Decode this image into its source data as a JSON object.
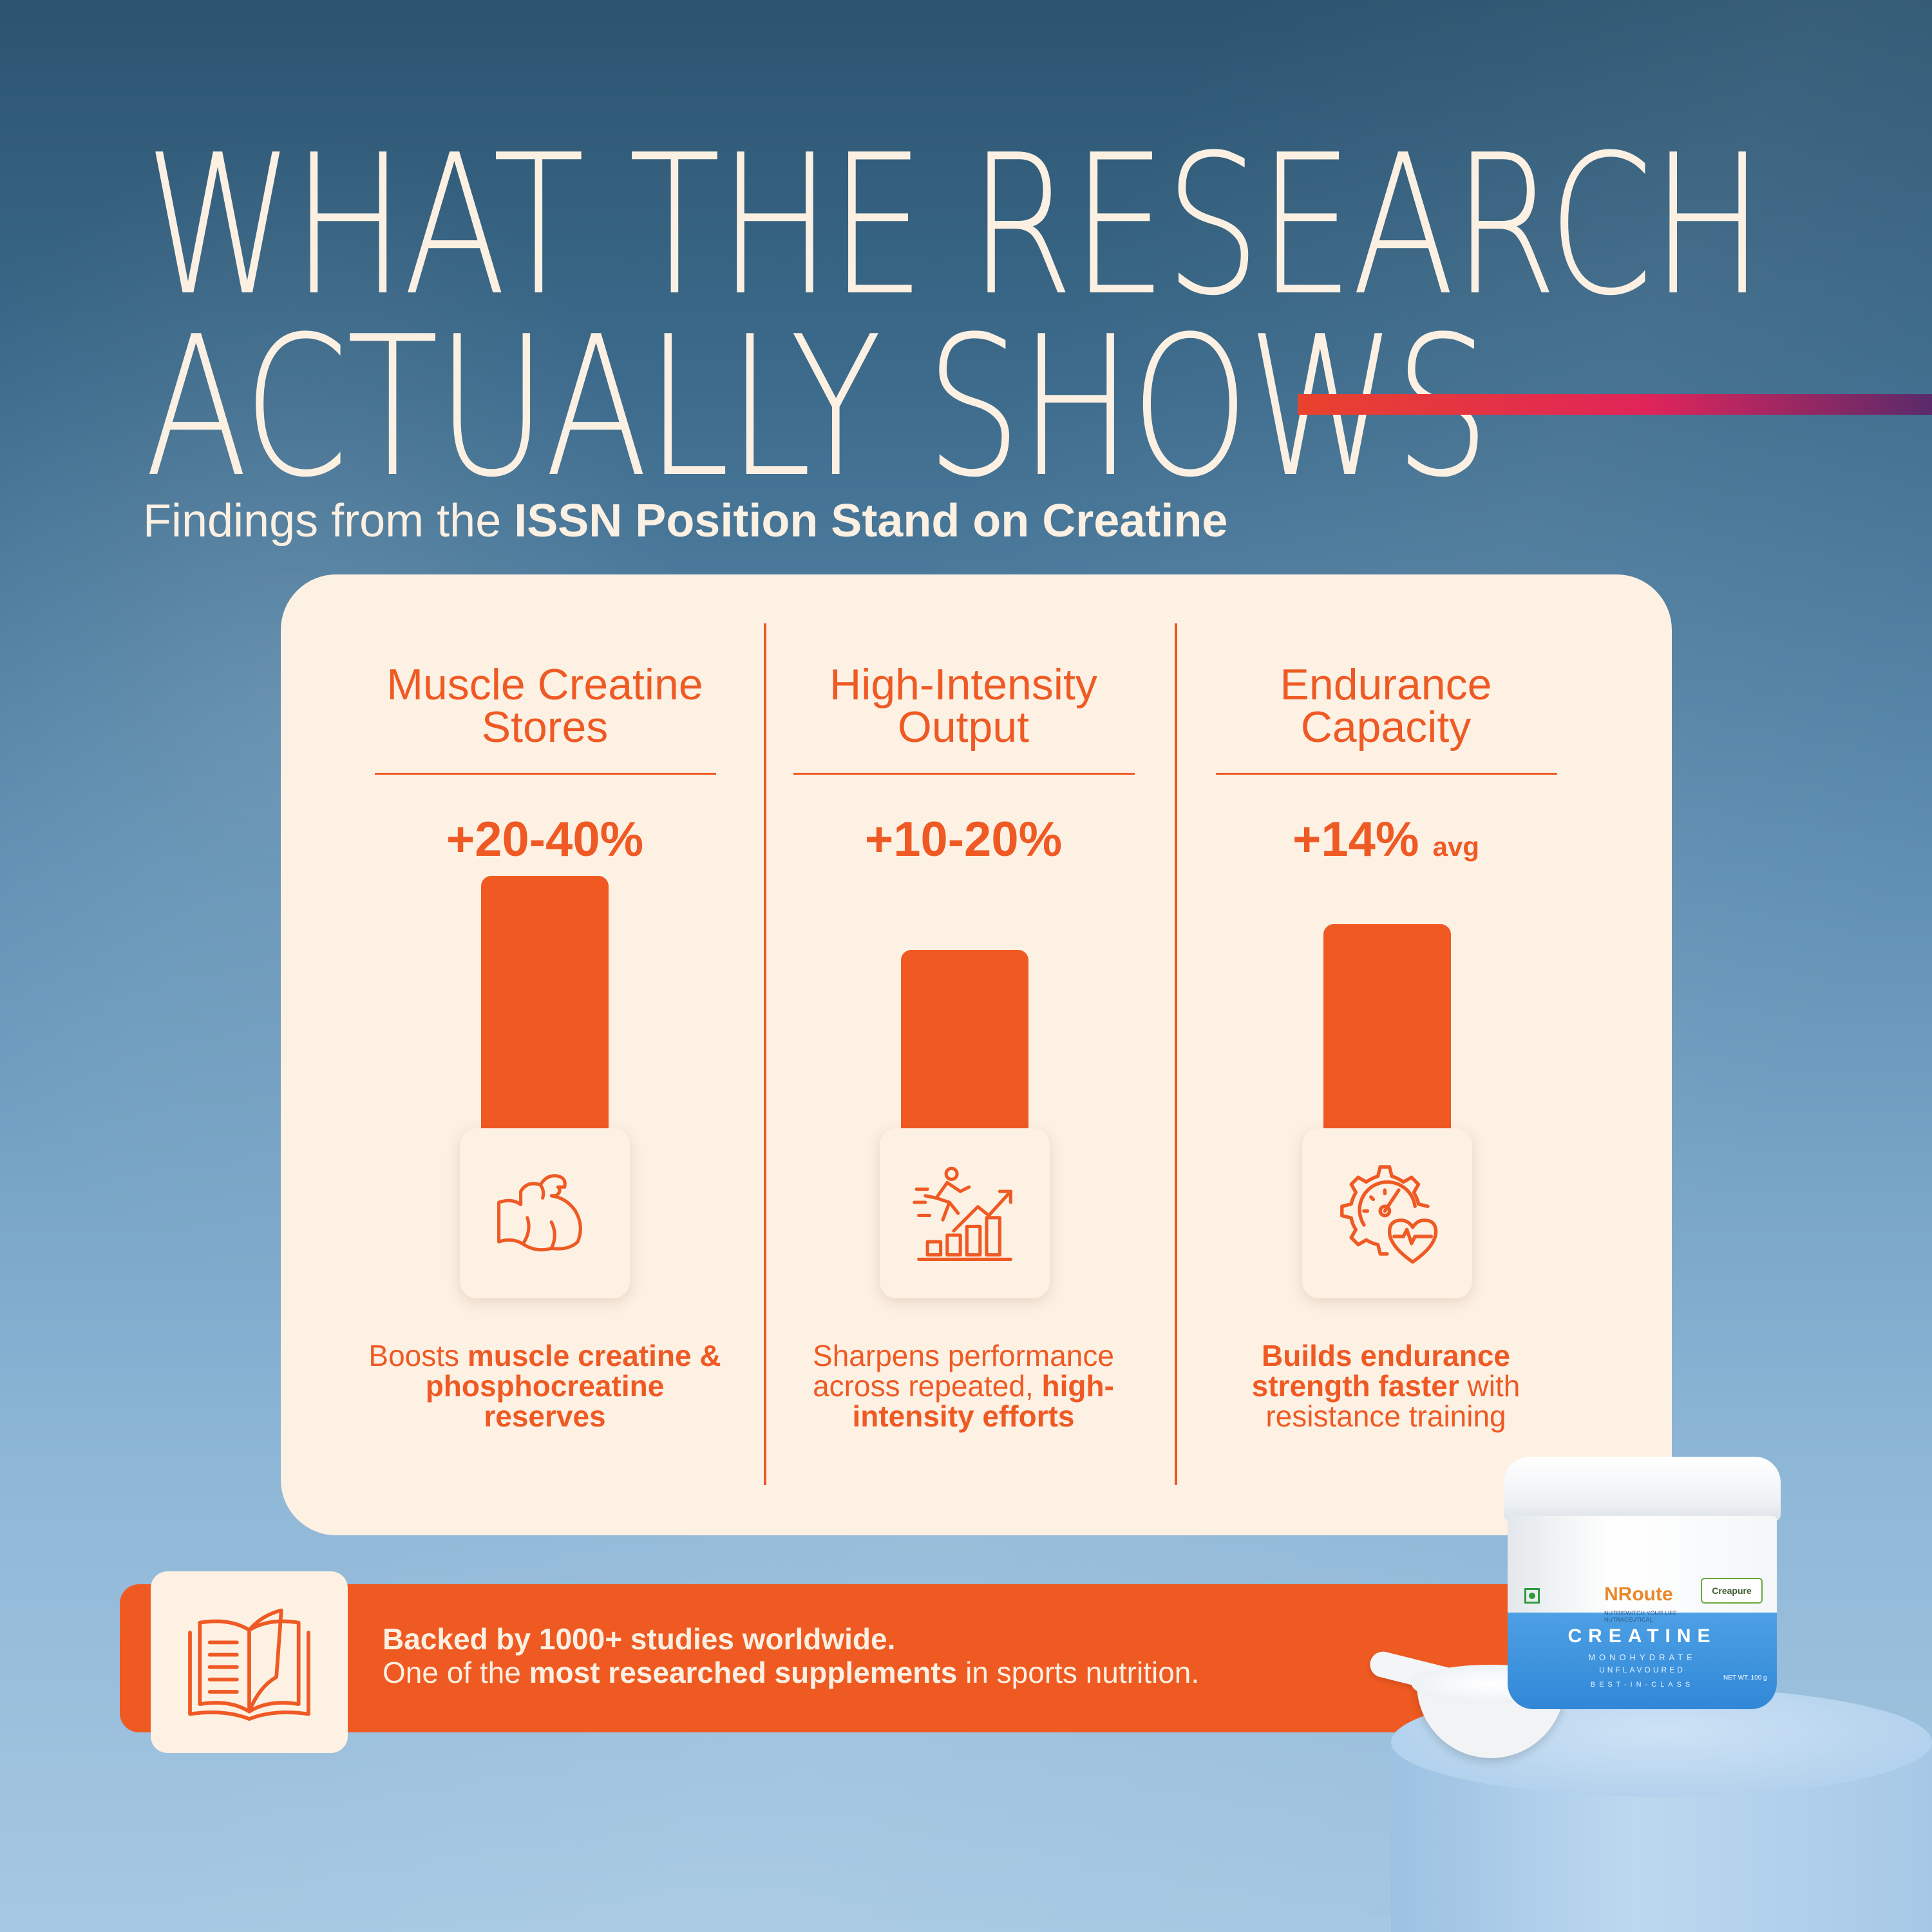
{
  "headline": {
    "line1": "WHAT THE RESEARCH",
    "line2": "ACTUALLY SHOWS"
  },
  "subtitle": {
    "prefix": "Findings from the ",
    "bold": "ISSN Position Stand on Creatine"
  },
  "columns": [
    {
      "title_line1": "Muscle Creatine",
      "title_line2": "Stores",
      "value": "+20-40%",
      "value_suffix": "",
      "bar_relative_height": 1.0,
      "icon": "flexed-bicep-icon",
      "desc": {
        "plain1": "Boosts ",
        "bold1": "muscle creatine & phosphocreatine reserves",
        "plain2": "",
        "bold2": ""
      }
    },
    {
      "title_line1": "High-Intensity",
      "title_line2": "Output",
      "value": "+10-20%",
      "value_suffix": "",
      "bar_relative_height": 0.71,
      "icon": "runner-growth-chart-icon",
      "desc": {
        "plain1": "Sharpens performance across repeated, ",
        "bold1": "high-intensity efforts",
        "plain2": "",
        "bold2": ""
      }
    },
    {
      "title_line1": "Endurance",
      "title_line2": "Capacity",
      "value": "+14%",
      "value_suffix": "avg",
      "bar_relative_height": 0.81,
      "icon": "gauge-heart-gear-icon",
      "desc": {
        "plain1": "",
        "bold1": "Builds endurance strength faster",
        "plain2": " with resistance training",
        "bold2": ""
      }
    }
  ],
  "banner": {
    "icon": "open-book-icon",
    "line1": "Backed by 1000+ studies worldwide.",
    "line2_prefix": "One of the ",
    "line2_bold": "most researched supplements",
    "line2_suffix": " in sports nutrition."
  },
  "product": {
    "brand": "NRoute",
    "tagline": "NUTRISWITCH YOUR LIFE",
    "category": "NUTRACEUTICAL",
    "badge": "Creapure",
    "name": "CREATINE",
    "type": "MONOHYDRATE",
    "flavour": "UNFLAVOURED",
    "claim": "BEST-IN-CLASS",
    "net": "NET WT. 100 g"
  },
  "colors": {
    "accent": "#ef5a22",
    "card": "#fdf1e4",
    "headline": "#fbf0e2",
    "bg_top": "#2b5470",
    "bg_bottom": "#a6c8e2"
  }
}
